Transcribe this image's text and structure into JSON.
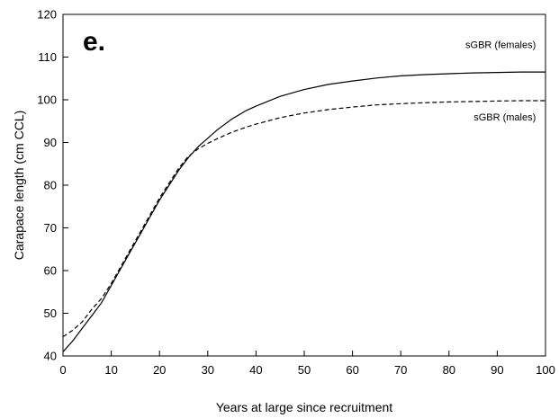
{
  "chart_data": {
    "type": "line",
    "panel_label": "e.",
    "xlabel": "Years at large since recruitment",
    "ylabel": "Carapace length (cm CCL)",
    "xlim": [
      0,
      100
    ],
    "ylim": [
      40,
      120
    ],
    "x_ticks": [
      0,
      10,
      20,
      30,
      40,
      50,
      60,
      70,
      80,
      90,
      100
    ],
    "y_ticks": [
      40,
      50,
      60,
      70,
      80,
      90,
      100,
      110,
      120
    ],
    "grid": false,
    "legend": "none",
    "series": [
      {
        "name": "sGBR (females)",
        "line_style": "solid",
        "x": [
          0,
          2,
          4,
          6,
          8,
          10,
          12,
          14,
          16,
          18,
          20,
          22,
          24,
          26,
          28,
          30,
          32,
          35,
          38,
          40,
          45,
          50,
          55,
          60,
          65,
          70,
          75,
          80,
          85,
          90,
          95,
          100
        ],
        "y": [
          41,
          43.5,
          46.5,
          49.5,
          52.5,
          56.5,
          60.5,
          64.5,
          68.5,
          72.5,
          76.5,
          80,
          83.5,
          86.5,
          89,
          91,
          93,
          95.5,
          97.5,
          98.5,
          100.8,
          102.4,
          103.6,
          104.4,
          105.1,
          105.6,
          105.9,
          106.1,
          106.3,
          106.4,
          106.5,
          106.5
        ]
      },
      {
        "name": "sGBR (males)",
        "line_style": "dashed",
        "x": [
          0,
          2,
          4,
          6,
          8,
          10,
          12,
          14,
          16,
          18,
          20,
          22,
          24,
          26,
          28,
          30,
          32,
          35,
          38,
          40,
          45,
          50,
          55,
          60,
          65,
          70,
          75,
          80,
          85,
          90,
          95,
          100
        ],
        "y": [
          44.5,
          46,
          48,
          51,
          53.5,
          57,
          61,
          65,
          69,
          73,
          77,
          80.5,
          84,
          86.8,
          88.5,
          89.8,
          90.9,
          92.4,
          93.6,
          94.3,
          95.8,
          96.9,
          97.7,
          98.3,
          98.8,
          99.1,
          99.3,
          99.5,
          99.6,
          99.7,
          99.8,
          99.8
        ]
      }
    ],
    "series_labels": [
      {
        "text": "sGBR (females)",
        "x": 98,
        "y": 113
      },
      {
        "text": "sGBR (males)",
        "x": 98,
        "y": 96
      }
    ]
  }
}
